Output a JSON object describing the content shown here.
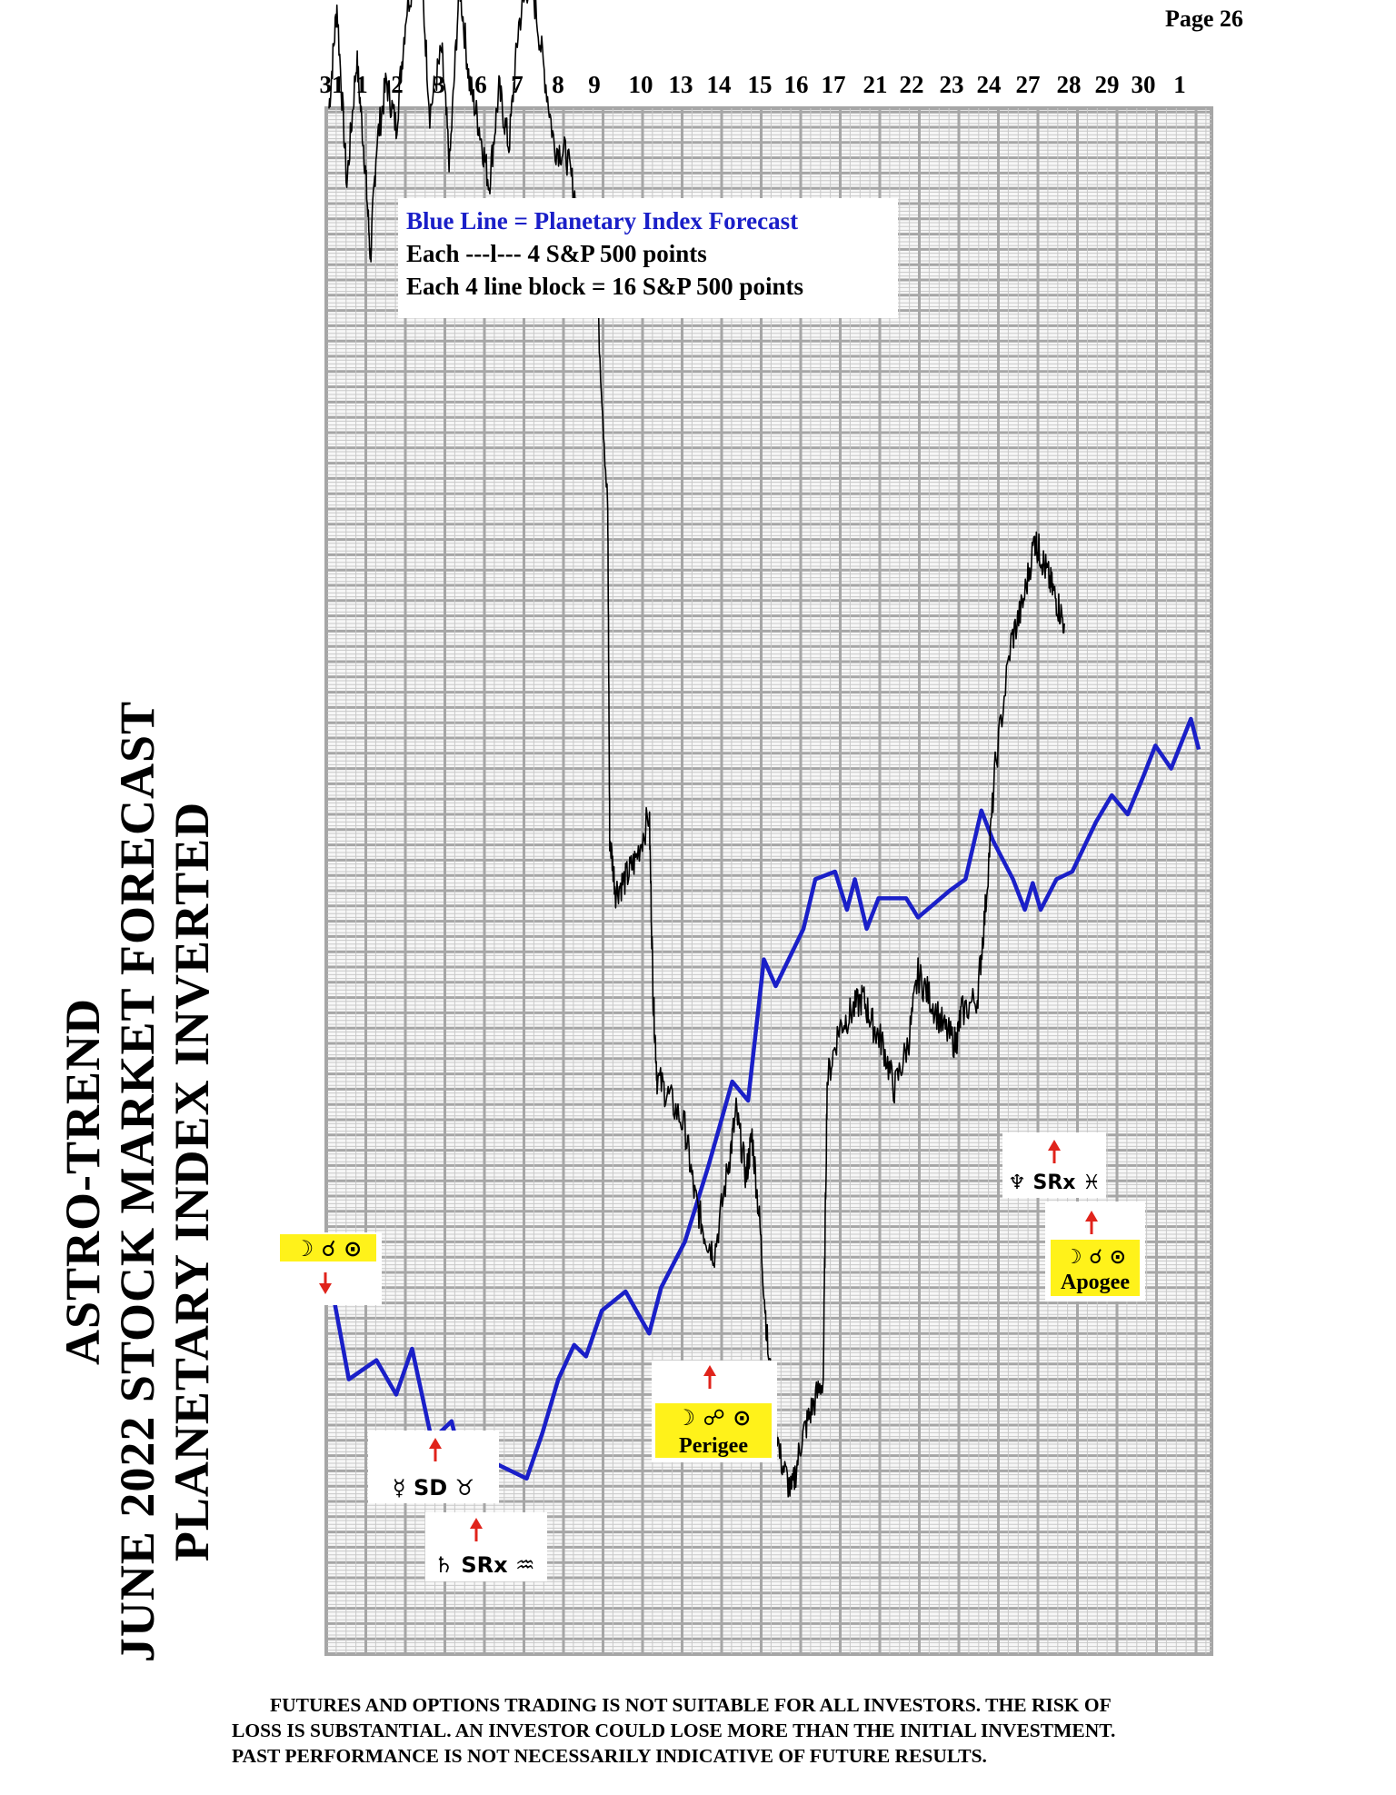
{
  "page": {
    "number": "Page  26"
  },
  "title": {
    "line1": "ASTRO-TREND",
    "line2": "JUNE 2022  STOCK MARKET FORECAST",
    "line3": "PLANETARY INDEX INVERTED"
  },
  "legend": {
    "line1": "Blue Line = Planetary Index Forecast",
    "line2": "Each ---l---  4 S&P 500 points",
    "line3": "Each 4 line block =  16  S&P 500 points"
  },
  "chart_data": {
    "type": "line",
    "title": "",
    "xlabel": "",
    "ylabel": "",
    "x_ticks": [
      "31",
      "1",
      "2",
      "3",
      "6",
      "7",
      "8",
      "9",
      "10",
      "13",
      "14",
      "15",
      "16",
      "17",
      "21",
      "22",
      "23",
      "24",
      "27",
      "28",
      "29",
      "30",
      "1"
    ],
    "grid": true,
    "y_scale": {
      "minor_points": 4,
      "major_block_points": 16
    },
    "series": [
      {
        "name": "Planetary Index Forecast",
        "color": "#1a1fc8",
        "values": [
          [
            0,
            100
          ],
          [
            0.5,
            72
          ],
          [
            1.2,
            77
          ],
          [
            1.7,
            68
          ],
          [
            2.1,
            80
          ],
          [
            2.6,
            56
          ],
          [
            3.1,
            61
          ],
          [
            3.4,
            48
          ],
          [
            3.7,
            55
          ],
          [
            4.0,
            48
          ],
          [
            4.2,
            50
          ],
          [
            5.0,
            46
          ],
          [
            5.4,
            58
          ],
          [
            5.8,
            72
          ],
          [
            6.2,
            81
          ],
          [
            6.5,
            78
          ],
          [
            6.9,
            90
          ],
          [
            7.5,
            95
          ],
          [
            8.1,
            84
          ],
          [
            8.4,
            96
          ],
          [
            9.0,
            108
          ],
          [
            9.6,
            128
          ],
          [
            10.2,
            150
          ],
          [
            10.6,
            145
          ],
          [
            11.0,
            182
          ],
          [
            11.3,
            175
          ],
          [
            12.0,
            190
          ],
          [
            12.3,
            203
          ],
          [
            12.8,
            205
          ],
          [
            13.1,
            195
          ],
          [
            13.3,
            203
          ],
          [
            13.6,
            190
          ],
          [
            13.9,
            198
          ],
          [
            14.6,
            198
          ],
          [
            14.9,
            193
          ],
          [
            15.7,
            200
          ],
          [
            16.1,
            203
          ],
          [
            16.5,
            221
          ],
          [
            16.8,
            213
          ],
          [
            17.3,
            203
          ],
          [
            17.6,
            195
          ],
          [
            17.8,
            202
          ],
          [
            18.0,
            195
          ],
          [
            18.4,
            203
          ],
          [
            18.8,
            205
          ],
          [
            19.4,
            218
          ],
          [
            19.8,
            225
          ],
          [
            20.2,
            220
          ],
          [
            20.6,
            230
          ],
          [
            20.9,
            238
          ],
          [
            21.3,
            232
          ],
          [
            21.8,
            245
          ],
          [
            22.0,
            237
          ]
        ]
      },
      {
        "name": "S&P 500",
        "color": "#000000",
        "values": [
          [
            0,
            405
          ],
          [
            0.2,
            432
          ],
          [
            0.45,
            385
          ],
          [
            0.7,
            418
          ],
          [
            0.9,
            392
          ],
          [
            1.05,
            366
          ],
          [
            1.2,
            395
          ],
          [
            1.45,
            412
          ],
          [
            1.7,
            400
          ],
          [
            1.95,
            430
          ],
          [
            2.3,
            447
          ],
          [
            2.55,
            404
          ],
          [
            2.85,
            420
          ],
          [
            3.05,
            390
          ],
          [
            3.3,
            438
          ],
          [
            3.55,
            412
          ],
          [
            3.8,
            400
          ],
          [
            4.05,
            385
          ],
          [
            4.3,
            410
          ],
          [
            4.55,
            395
          ],
          [
            4.8,
            427
          ],
          [
            5.1,
            440
          ],
          [
            5.4,
            418
          ],
          [
            5.7,
            395
          ],
          [
            6.0,
            393
          ],
          [
            6.3,
            378
          ],
          [
            6.8,
            352
          ],
          [
            7.05,
            300
          ],
          [
            7.1,
            214
          ],
          [
            7.25,
            200
          ],
          [
            7.5,
            203
          ],
          [
            7.75,
            208
          ],
          [
            8.1,
            220
          ],
          [
            8.2,
            172
          ],
          [
            8.3,
            151
          ],
          [
            8.6,
            146
          ],
          [
            9.0,
            138
          ],
          [
            9.25,
            120
          ],
          [
            9.5,
            110
          ],
          [
            9.75,
            105
          ],
          [
            10.1,
            128
          ],
          [
            10.3,
            142
          ],
          [
            10.55,
            125
          ],
          [
            10.7,
            136
          ],
          [
            10.9,
            112
          ],
          [
            11.1,
            80
          ],
          [
            11.4,
            52
          ],
          [
            11.7,
            42
          ],
          [
            11.95,
            56
          ],
          [
            12.2,
            64
          ],
          [
            12.5,
            72
          ],
          [
            12.6,
            150
          ],
          [
            12.9,
            164
          ],
          [
            13.2,
            168
          ],
          [
            13.5,
            172
          ],
          [
            13.75,
            165
          ],
          [
            14.0,
            160
          ],
          [
            14.3,
            148
          ],
          [
            14.65,
            160
          ],
          [
            14.9,
            178
          ],
          [
            15.2,
            172
          ],
          [
            15.55,
            164
          ],
          [
            15.85,
            160
          ],
          [
            16.0,
            168
          ],
          [
            16.4,
            172
          ],
          [
            16.6,
            195
          ],
          [
            16.85,
            232
          ],
          [
            17.25,
            265
          ],
          [
            17.55,
            275
          ],
          [
            17.85,
            292
          ],
          [
            18.0,
            288
          ],
          [
            18.2,
            282
          ],
          [
            18.4,
            276
          ],
          [
            18.6,
            270
          ]
        ]
      }
    ]
  },
  "annotations": {
    "ann1": {
      "glyphs": "☽  ☌  ⊙",
      "arrow": "down"
    },
    "ann2": {
      "glyphs": "☿  SD  ♉",
      "arrow": "up"
    },
    "ann3": {
      "glyphs": "♄  SRx  ♒",
      "arrow": "up"
    },
    "ann4": {
      "glyphs": "☽  ☍  ⊙",
      "label": "Perigee",
      "arrow": "up"
    },
    "ann5": {
      "glyphs": "♆  SRx  ♓",
      "arrow": "up"
    },
    "ann6": {
      "glyphs": "☽  ☌  ⊙",
      "label": "Apogee",
      "arrow": "up"
    }
  },
  "disclaimer": {
    "line1": "FUTURES AND OPTIONS TRADING IS NOT SUITABLE FOR ALL INVESTORS.  THE RISK OF",
    "line2": "LOSS IS SUBSTANTIAL.  AN INVESTOR COULD LOSE MORE THAN THE INITIAL INVESTMENT.",
    "line3": "PAST PERFORMANCE IS NOT NECESSARILY INDICATIVE OF FUTURE RESULTS."
  },
  "colors": {
    "forecast": "#1a1fc8",
    "price": "#000000",
    "grid_major": "#a6a6a6",
    "grid_minor": "#c8c8c8",
    "arrow": "#e0231b",
    "highlight": "#fff21a"
  }
}
